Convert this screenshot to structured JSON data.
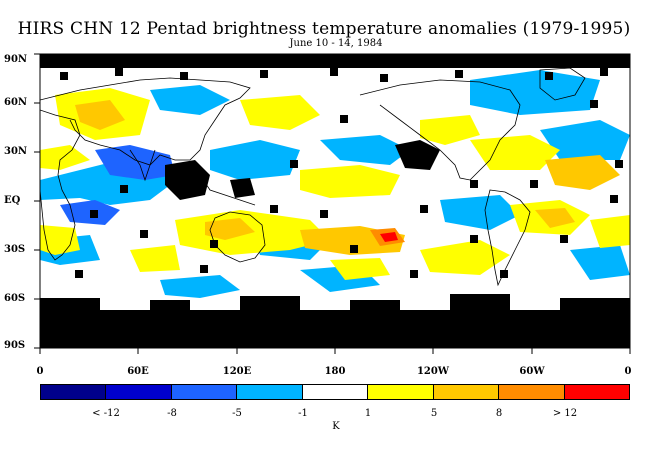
{
  "header": {
    "title": "HIRS CHN 12 Pentad brightness temperature anomalies (1979-1995)",
    "subtitle": "June 10 - 14, 1984"
  },
  "map": {
    "latitude_labels": [
      "90N",
      "60N",
      "30N",
      "EQ",
      "30S",
      "60S",
      "90S"
    ],
    "longitude_labels": [
      "0",
      "60E",
      "120E",
      "180",
      "120W",
      "60W",
      "0"
    ]
  },
  "legend": {
    "units": "K",
    "colors": [
      "#00008b",
      "#0000cd",
      "#1e64ff",
      "#00b4ff",
      "#ffffff",
      "#ffff00",
      "#ffc800",
      "#ff8c00",
      "#ff0000"
    ],
    "labels": [
      "< -12",
      "-8",
      "-5",
      "-1",
      "1",
      "5",
      "8",
      "> 12"
    ]
  }
}
